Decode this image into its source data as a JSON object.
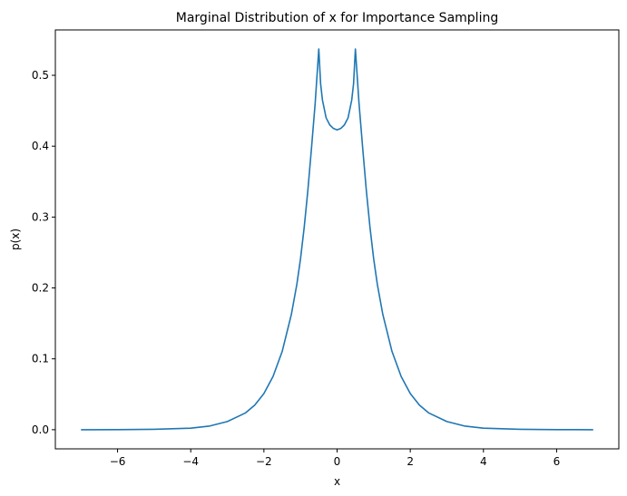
{
  "chart_data": {
    "type": "line",
    "title": "Marginal Distribution of x for Importance Sampling",
    "xlabel": "x",
    "ylabel": "p(x)",
    "xlim": [
      -7.7,
      7.7
    ],
    "ylim": [
      -0.027,
      0.564
    ],
    "xticks": [
      -6,
      -4,
      -2,
      0,
      2,
      4,
      6
    ],
    "xtick_labels": [
      "−6",
      "−4",
      "−2",
      "0",
      "2",
      "4",
      "6"
    ],
    "yticks": [
      0.0,
      0.1,
      0.2,
      0.3,
      0.4,
      0.5
    ],
    "ytick_labels": [
      "0.0",
      "0.1",
      "0.2",
      "0.3",
      "0.4",
      "0.5"
    ],
    "grid": false,
    "legend": "none",
    "series_color": "#1f77b4",
    "series": [
      {
        "x": [
          -7.0,
          -6.0,
          -5.0,
          -4.0,
          -3.5,
          -3.0,
          -2.5,
          -2.25,
          -2.0,
          -1.75,
          -1.5,
          -1.25,
          -1.1,
          -1.0,
          -0.9,
          -0.8,
          -0.7,
          -0.6,
          -0.5,
          -0.45,
          -0.4,
          -0.3,
          -0.2,
          -0.1,
          0.0,
          0.1,
          0.2,
          0.3,
          0.4,
          0.45,
          0.5,
          0.6,
          0.7,
          0.8,
          0.9,
          1.0,
          1.1,
          1.25,
          1.5,
          1.75,
          2.0,
          2.25,
          2.5,
          3.0,
          3.5,
          4.0,
          5.0,
          6.0,
          7.0
        ],
        "y": [
          0.0,
          0.0001,
          0.0006,
          0.0022,
          0.005,
          0.0115,
          0.0238,
          0.0347,
          0.051,
          0.0752,
          0.1105,
          0.1625,
          0.205,
          0.241,
          0.285,
          0.337,
          0.397,
          0.46,
          0.537,
          0.488,
          0.465,
          0.44,
          0.43,
          0.425,
          0.423,
          0.425,
          0.43,
          0.44,
          0.465,
          0.488,
          0.537,
          0.46,
          0.397,
          0.337,
          0.285,
          0.241,
          0.205,
          0.1625,
          0.1105,
          0.0752,
          0.051,
          0.0347,
          0.0238,
          0.0115,
          0.005,
          0.0022,
          0.0006,
          0.0001,
          0.0
        ]
      }
    ]
  }
}
